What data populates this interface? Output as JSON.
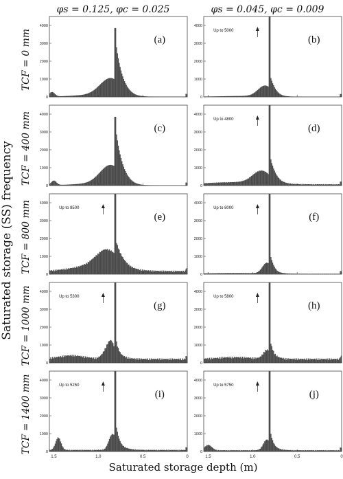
{
  "column_headers": [
    "φs = 0.125,  φc = 0.025",
    "φs = 0.045,  φc = 0.009"
  ],
  "row_labels": [
    "TCF = 0 mm",
    "TCF = 400 mm",
    "TCF = 800 mm",
    "TCF = 1000 mm",
    "TCF = 1400 mm"
  ],
  "y_axis_label": "Saturated storage (SS) frequency",
  "x_axis_label": "Saturated storage depth (m)",
  "colors": {
    "bars": "#4a4a4a",
    "frame": "#444444"
  },
  "chart_data": [
    {
      "type": "bar",
      "panel": "(a)",
      "xlim": [
        1.55,
        0
      ],
      "ylim": [
        0,
        4500
      ],
      "yticks": [
        0,
        1000,
        2000,
        3000,
        4000
      ],
      "xticks": [
        "1.5",
        "1.0",
        "0.5",
        "0"
      ],
      "peak_x": 0.81,
      "peak_y": 3850,
      "note": "",
      "histogram": {
        "base": 20,
        "bumps": [
          {
            "x": 1.52,
            "h": 250,
            "w": 0.03
          },
          {
            "x": 1.1,
            "h": 80,
            "w": 0.2
          }
        ],
        "shoulder": {
          "x": 0.86,
          "h": 1000,
          "w": 0.12
        },
        "tail": {
          "h": 2400,
          "decay": 0.06
        }
      }
    },
    {
      "type": "bar",
      "panel": "(b)",
      "xlim": [
        1.55,
        0
      ],
      "ylim": [
        0,
        4500
      ],
      "yticks": [
        0,
        1000,
        2000,
        3000,
        4000
      ],
      "xticks": [
        "1.5",
        "1.0",
        "0.5",
        "0"
      ],
      "peak_x": 0.81,
      "peak_y": 5000,
      "note": "Up to 5000",
      "histogram": {
        "base": 15,
        "bumps": [
          {
            "x": 1.1,
            "h": 40,
            "w": 0.25
          }
        ],
        "shoulder": {
          "x": 0.86,
          "h": 600,
          "w": 0.08
        },
        "tail": {
          "h": 800,
          "decay": 0.05
        }
      }
    },
    {
      "type": "bar",
      "panel": "(c)",
      "xlim": [
        1.55,
        0
      ],
      "ylim": [
        0,
        4500
      ],
      "yticks": [
        0,
        1000,
        2000,
        3000,
        4000
      ],
      "xticks": [
        "1.5",
        "1.0",
        "0.5",
        "0"
      ],
      "peak_x": 0.81,
      "peak_y": 3850,
      "note": "",
      "histogram": {
        "base": 20,
        "bumps": [
          {
            "x": 1.5,
            "h": 250,
            "w": 0.03
          },
          {
            "x": 1.1,
            "h": 80,
            "w": 0.2
          }
        ],
        "shoulder": {
          "x": 0.86,
          "h": 1100,
          "w": 0.12
        },
        "tail": {
          "h": 2400,
          "decay": 0.06
        }
      }
    },
    {
      "type": "bar",
      "panel": "(d)",
      "xlim": [
        1.55,
        0
      ],
      "ylim": [
        0,
        4500
      ],
      "yticks": [
        0,
        1000,
        2000,
        3000,
        4000
      ],
      "xticks": [
        "1.5",
        "1.0",
        "0.5",
        "0"
      ],
      "peak_x": 0.81,
      "peak_y": 4800,
      "note": "Up to 4800",
      "histogram": {
        "base": 80,
        "bumps": [
          {
            "x": 1.2,
            "h": 120,
            "w": 0.3
          }
        ],
        "shoulder": {
          "x": 0.9,
          "h": 700,
          "w": 0.1
        },
        "tail": {
          "h": 1200,
          "decay": 0.06
        }
      }
    },
    {
      "type": "bar",
      "panel": "(e)",
      "xlim": [
        1.55,
        0
      ],
      "ylim": [
        0,
        4500
      ],
      "yticks": [
        0,
        1000,
        2000,
        3000,
        4000
      ],
      "xticks": [
        "1.5",
        "1.0",
        "0.5",
        "0"
      ],
      "peak_x": 0.81,
      "peak_y": 8500,
      "note": "Up to 8500",
      "histogram": {
        "base": 200,
        "bumps": [
          {
            "x": 1.0,
            "h": 350,
            "w": 0.25
          }
        ],
        "shoulder": {
          "x": 0.9,
          "h": 900,
          "w": 0.12
        },
        "tail": {
          "h": 900,
          "decay": 0.07
        }
      }
    },
    {
      "type": "bar",
      "panel": "(f)",
      "xlim": [
        1.55,
        0
      ],
      "ylim": [
        0,
        4500
      ],
      "yticks": [
        0,
        1000,
        2000,
        3000,
        4000
      ],
      "xticks": [
        "1.5",
        "1.0",
        "0.5",
        "0"
      ],
      "peak_x": 0.81,
      "peak_y": 8000,
      "note": "Up to 8000",
      "histogram": {
        "base": 30,
        "bumps": [
          {
            "x": 1.2,
            "h": 40,
            "w": 0.3
          }
        ],
        "shoulder": {
          "x": 0.84,
          "h": 600,
          "w": 0.05
        },
        "tail": {
          "h": 700,
          "decay": 0.05
        }
      }
    },
    {
      "type": "bar",
      "panel": "(g)",
      "xlim": [
        1.55,
        0
      ],
      "ylim": [
        0,
        4500
      ],
      "yticks": [
        0,
        1000,
        2000,
        3000,
        4000
      ],
      "xticks": [
        "1.5",
        "1.0",
        "0.5",
        "0"
      ],
      "peak_x": 0.81,
      "peak_y": 5300,
      "note": "Up to 5300",
      "histogram": {
        "base": 250,
        "bumps": [
          {
            "x": 1.3,
            "h": 200,
            "w": 0.15
          },
          {
            "x": 0.9,
            "h": 500,
            "w": 0.05
          }
        ],
        "shoulder": {
          "x": 0.85,
          "h": 700,
          "w": 0.04
        },
        "tail": {
          "h": 800,
          "decay": 0.06
        }
      }
    },
    {
      "type": "bar",
      "panel": "(h)",
      "xlim": [
        1.55,
        0
      ],
      "ylim": [
        0,
        4500
      ],
      "yticks": [
        0,
        1000,
        2000,
        3000,
        4000
      ],
      "xticks": [
        "1.5",
        "1.0",
        "0.5",
        "0"
      ],
      "peak_x": 0.81,
      "peak_y": 5800,
      "note": "Up to 5800",
      "histogram": {
        "base": 250,
        "bumps": [
          {
            "x": 1.2,
            "h": 100,
            "w": 0.2
          }
        ],
        "shoulder": {
          "x": 0.84,
          "h": 500,
          "w": 0.04
        },
        "tail": {
          "h": 800,
          "decay": 0.05
        }
      }
    },
    {
      "type": "bar",
      "panel": "(i)",
      "xlim": [
        1.55,
        0
      ],
      "ylim": [
        0,
        4500
      ],
      "yticks": [
        0,
        1000,
        2000,
        3000,
        4000
      ],
      "xticks": [
        "1.5",
        "1.0",
        "0.5",
        "0"
      ],
      "peak_x": 0.81,
      "peak_y": 5250,
      "note": "Up to 5250",
      "histogram": {
        "base": 100,
        "bumps": [
          {
            "x": 1.45,
            "h": 700,
            "w": 0.03
          }
        ],
        "shoulder": {
          "x": 0.84,
          "h": 900,
          "w": 0.04
        },
        "tail": {
          "h": 1000,
          "decay": 0.06
        }
      }
    },
    {
      "type": "bar",
      "panel": "(j)",
      "xlim": [
        1.55,
        0
      ],
      "ylim": [
        0,
        4500
      ],
      "yticks": [
        0,
        1000,
        2000,
        3000,
        4000
      ],
      "xticks": [
        "1.5",
        "1.0",
        "0.5",
        "0"
      ],
      "peak_x": 0.81,
      "peak_y": 5750,
      "note": "Up to 5750",
      "histogram": {
        "base": 80,
        "bumps": [
          {
            "x": 1.5,
            "h": 300,
            "w": 0.04
          }
        ],
        "shoulder": {
          "x": 0.84,
          "h": 600,
          "w": 0.04
        },
        "tail": {
          "h": 800,
          "decay": 0.05
        }
      }
    }
  ]
}
